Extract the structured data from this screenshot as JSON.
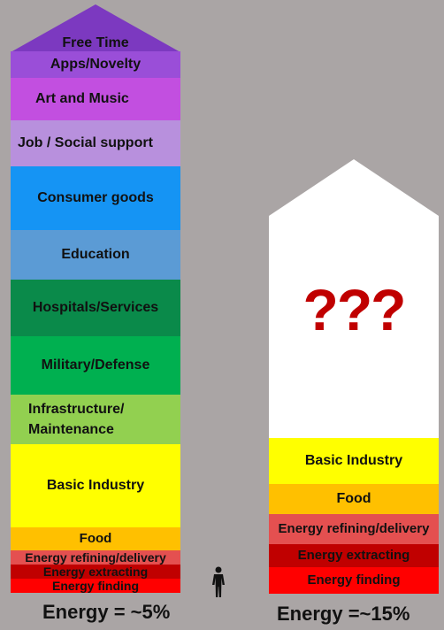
{
  "colors": {
    "background": "#aaa5a5",
    "free_time": "#7c39c0",
    "apps": "#9a4ed8",
    "art": "#c24fe0",
    "job": "#b890dd",
    "consumer": "#1594f4",
    "education": "#5b9bd5",
    "hospitals": "#0a8a4a",
    "military": "#00b050",
    "infrastructure": "#92d050",
    "basic_industry": "#ffff00",
    "food": "#ffc000",
    "refining": "#e45050",
    "extracting": "#c00000",
    "finding": "#ff0000",
    "question_marks": "#c00000",
    "future_top": "#ffffff"
  },
  "left_column": {
    "free_time": "Free Time",
    "apps": "Apps/Novelty",
    "art": "Art and Music",
    "job": "Job / Social support",
    "consumer": "Consumer goods",
    "education": "Education",
    "hospitals": "Hospitals/Services",
    "military": "Military/Defense",
    "infrastructure_line1": "Infrastructure/",
    "infrastructure_line2": "Maintenance",
    "basic_industry": "Basic Industry",
    "food": "Food",
    "refining": "Energy refining/delivery",
    "extracting": "Energy extracting",
    "finding": "Energy finding",
    "footer": "Energy = ~5%"
  },
  "right_column": {
    "unknown": "???",
    "basic_industry": "Basic Industry",
    "food": "Food",
    "refining": "Energy refining/delivery",
    "extracting": "Energy extracting",
    "finding": "Energy finding",
    "footer": "Energy =~15%"
  },
  "icons": {
    "person": "person-icon"
  }
}
